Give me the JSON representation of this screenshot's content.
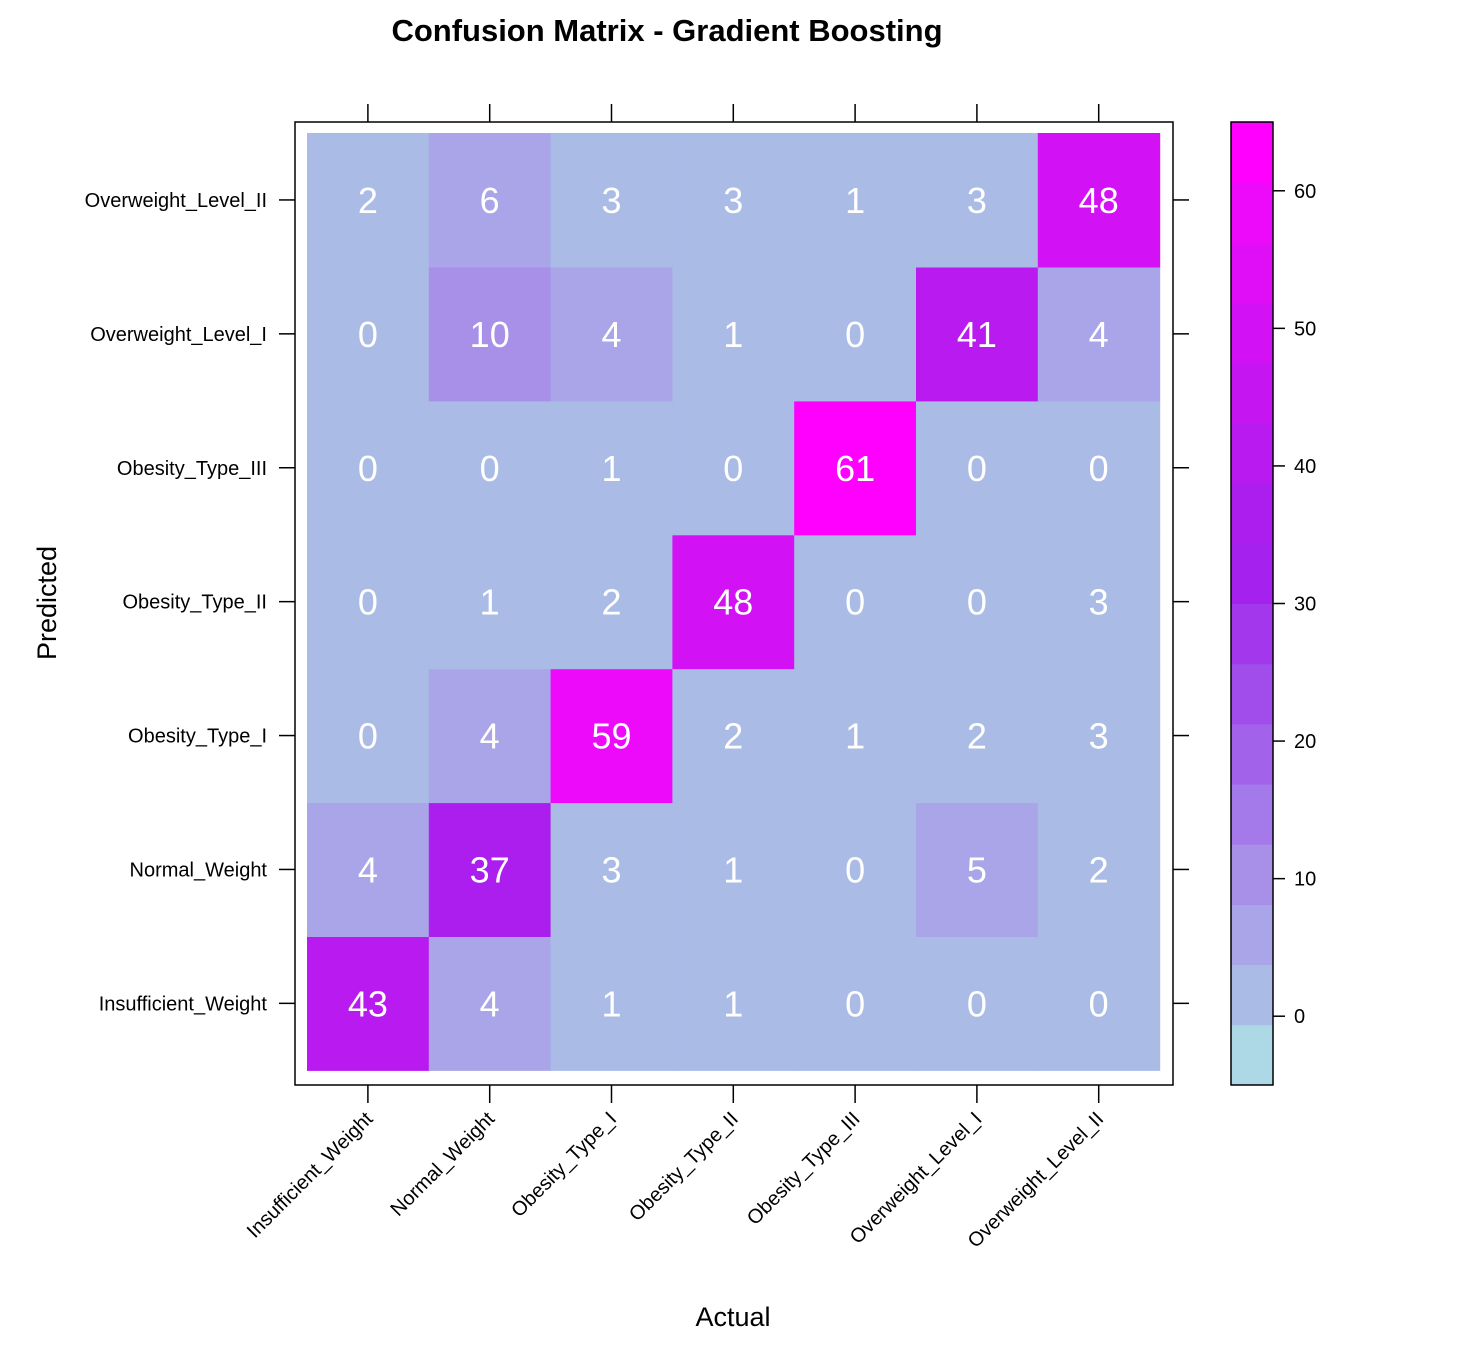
{
  "chart_data": {
    "type": "heatmap",
    "title": "Confusion Matrix - Gradient Boosting",
    "xlabel": "Actual",
    "ylabel": "Predicted",
    "x_categories": [
      "Insufficient_Weight",
      "Normal_Weight",
      "Obesity_Type_I",
      "Obesity_Type_II",
      "Obesity_Type_III",
      "Overweight_Level_I",
      "Overweight_Level_II"
    ],
    "y_categories": [
      "Insufficient_Weight",
      "Normal_Weight",
      "Obesity_Type_I",
      "Obesity_Type_II",
      "Obesity_Type_III",
      "Overweight_Level_I",
      "Overweight_Level_II"
    ],
    "values": [
      [
        43,
        4,
        1,
        1,
        0,
        0,
        0
      ],
      [
        4,
        37,
        3,
        1,
        0,
        5,
        2
      ],
      [
        0,
        4,
        59,
        2,
        1,
        2,
        3
      ],
      [
        0,
        1,
        2,
        48,
        0,
        0,
        3
      ],
      [
        0,
        0,
        1,
        0,
        61,
        0,
        0
      ],
      [
        0,
        10,
        4,
        1,
        0,
        41,
        4
      ],
      [
        2,
        6,
        3,
        3,
        1,
        3,
        48
      ]
    ],
    "colorbar": {
      "range": [
        -5,
        65
      ],
      "ticks": [
        0,
        10,
        20,
        30,
        40,
        50,
        60
      ],
      "colors": [
        "#add8e6",
        "#aabbe6",
        "#a9a5e8",
        "#a88fe8",
        "#a479e9",
        "#a263ea",
        "#a14deb",
        "#a237ec",
        "#a521ed",
        "#ac1eee",
        "#b91af0",
        "#c516f2",
        "#d212f4",
        "#df0ef7",
        "#ed0afb",
        "#ff00ff"
      ]
    }
  }
}
